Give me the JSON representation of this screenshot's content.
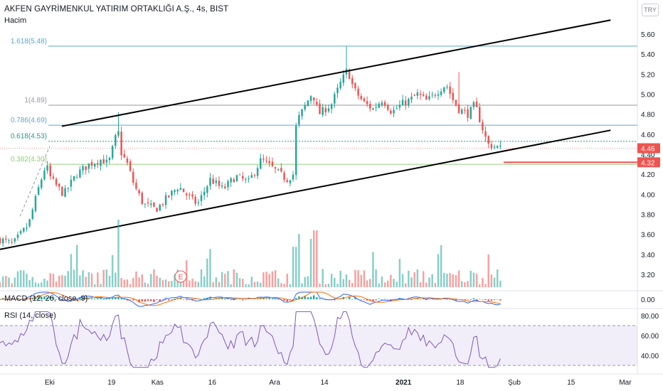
{
  "header": {
    "title": "AKFEN GAYRİMENKUL YATIRIM ORTAKLIĞI A.Ş., 4s, BIST",
    "volume_label": "Hacim",
    "currency": "TRY"
  },
  "macd": {
    "label": "MACD (12, 26, close, 9)"
  },
  "rsi": {
    "label": "RSI (14, close)"
  },
  "earnings_marker": "E",
  "chart_data": {
    "type": "candlestick",
    "symbol": "AKFGY",
    "exchange": "BIST",
    "interval": "4s",
    "ylim": [
      3.4,
      5.8
    ],
    "y_ticks": [
      "5.60",
      "5.40",
      "5.20",
      "5.00",
      "4.80",
      "4.60",
      "4.40",
      "4.20",
      "4.00",
      "3.80",
      "3.60",
      "3.40",
      "3.20"
    ],
    "x_ticks": [
      "Eki",
      "19",
      "Kas",
      "16",
      "Ara",
      "14",
      "2021",
      "18",
      "Şub",
      "15",
      "Mar"
    ],
    "price_labels": [
      {
        "value": "4.46",
        "color": "#ef5350"
      },
      {
        "value": "4.32",
        "color": "#ef5350"
      }
    ],
    "fib_levels": [
      {
        "label": "1.618(5.48)",
        "value": 5.48,
        "color": "#5aa7cf"
      },
      {
        "label": "1(4.89)",
        "value": 4.89,
        "color": "#9598a1"
      },
      {
        "label": "0.786(4.69)",
        "value": 4.69,
        "color": "#5aa7cf"
      },
      {
        "label": "0.618(4.53)",
        "value": 4.53,
        "color": "#22998c"
      },
      {
        "label": "0.382(4.30)",
        "value": 4.3,
        "color": "#8fcf7c"
      }
    ],
    "channel_upper": {
      "from": [
        0.097,
        4.68
      ],
      "to": [
        0.958,
        5.74
      ]
    },
    "channel_lower": {
      "from": [
        0.0,
        3.45
      ],
      "to": [
        0.958,
        4.64
      ]
    },
    "close_waypoints": [
      [
        0.0,
        3.55
      ],
      [
        0.02,
        3.5
      ],
      [
        0.045,
        3.7
      ],
      [
        0.06,
        4.05
      ],
      [
        0.072,
        4.3
      ],
      [
        0.08,
        4.15
      ],
      [
        0.1,
        4.0
      ],
      [
        0.12,
        4.2
      ],
      [
        0.14,
        4.3
      ],
      [
        0.16,
        4.35
      ],
      [
        0.17,
        4.3
      ],
      [
        0.185,
        4.65
      ],
      [
        0.19,
        4.42
      ],
      [
        0.2,
        4.3
      ],
      [
        0.21,
        4.1
      ],
      [
        0.225,
        3.9
      ],
      [
        0.245,
        3.85
      ],
      [
        0.26,
        3.95
      ],
      [
        0.28,
        4.08
      ],
      [
        0.3,
        3.95
      ],
      [
        0.31,
        3.9
      ],
      [
        0.33,
        4.15
      ],
      [
        0.35,
        4.05
      ],
      [
        0.37,
        4.18
      ],
      [
        0.39,
        4.12
      ],
      [
        0.41,
        4.35
      ],
      [
        0.43,
        4.25
      ],
      [
        0.45,
        4.15
      ],
      [
        0.46,
        4.2
      ],
      [
        0.465,
        4.72
      ],
      [
        0.48,
        4.9
      ],
      [
        0.49,
        5.02
      ],
      [
        0.5,
        4.8
      ],
      [
        0.52,
        4.9
      ],
      [
        0.535,
        5.12
      ],
      [
        0.545,
        5.25
      ],
      [
        0.555,
        5.05
      ],
      [
        0.57,
        4.92
      ],
      [
        0.585,
        4.85
      ],
      [
        0.6,
        4.95
      ],
      [
        0.615,
        4.82
      ],
      [
        0.63,
        4.9
      ],
      [
        0.645,
        4.95
      ],
      [
        0.655,
        5.0
      ],
      [
        0.67,
        4.93
      ],
      [
        0.69,
        5.05
      ],
      [
        0.7,
        5.1
      ],
      [
        0.71,
        4.95
      ],
      [
        0.72,
        4.85
      ],
      [
        0.735,
        4.8
      ],
      [
        0.745,
        4.9
      ],
      [
        0.755,
        4.7
      ],
      [
        0.765,
        4.5
      ],
      [
        0.775,
        4.48
      ],
      [
        0.785,
        4.46
      ]
    ],
    "series": [
      {
        "name": "Hacim",
        "type": "volume"
      },
      {
        "name": "MACD (12, 26, close, 9)",
        "type": "macd",
        "levels": [
          "0.00"
        ]
      },
      {
        "name": "RSI (14, close)",
        "type": "rsi",
        "levels": [
          "80.00",
          "60.00",
          "40.00"
        ],
        "band": [
          30,
          70
        ]
      }
    ]
  }
}
